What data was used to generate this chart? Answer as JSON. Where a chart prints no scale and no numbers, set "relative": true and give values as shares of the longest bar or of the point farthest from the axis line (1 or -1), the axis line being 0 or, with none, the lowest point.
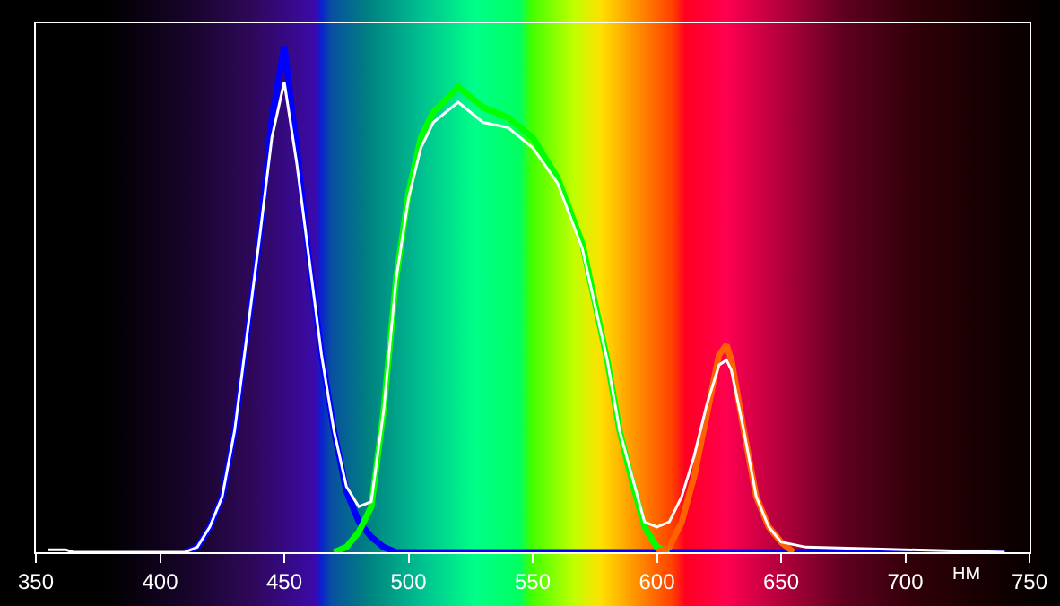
{
  "chart_data": {
    "type": "line",
    "relative": true,
    "xlabel": "НМ",
    "xlim": [
      350,
      750
    ],
    "xticks": [
      350,
      400,
      450,
      500,
      550,
      600,
      650,
      700,
      750
    ],
    "grid": false,
    "marker": "none",
    "line_style": "solid",
    "series": [
      {
        "color": "#0000ff",
        "x": [
          410,
          415,
          420,
          425,
          430,
          435,
          440,
          445,
          450,
          455,
          460,
          465,
          470,
          475,
          480,
          485,
          490,
          495,
          550,
          600,
          650,
          700,
          740
        ],
        "values": [
          0,
          0.01,
          0.05,
          0.11,
          0.24,
          0.43,
          0.62,
          0.86,
          1.0,
          0.8,
          0.58,
          0.39,
          0.24,
          0.12,
          0.06,
          0.03,
          0.01,
          0,
          0,
          0,
          0,
          0,
          0
        ]
      },
      {
        "color": "#00ff00",
        "x": [
          470,
          475,
          480,
          485,
          490,
          495,
          500,
          505,
          510,
          520,
          530,
          540,
          550,
          560,
          570,
          580,
          585,
          590,
          595,
          600,
          605
        ],
        "values": [
          0,
          0.01,
          0.04,
          0.09,
          0.28,
          0.54,
          0.71,
          0.82,
          0.87,
          0.92,
          0.88,
          0.86,
          0.82,
          0.74,
          0.61,
          0.38,
          0.24,
          0.14,
          0.05,
          0.01,
          0
        ]
      },
      {
        "color": "#ff6000",
        "x": [
          600,
          605,
          610,
          615,
          620,
          625,
          628,
          630,
          635,
          640,
          645,
          650,
          655
        ],
        "values": [
          0,
          0.01,
          0.06,
          0.15,
          0.27,
          0.39,
          0.41,
          0.38,
          0.24,
          0.11,
          0.05,
          0.02,
          0
        ]
      },
      {
        "color": "#ffffff",
        "x": [
          355,
          362,
          365,
          410,
          415,
          420,
          425,
          430,
          435,
          440,
          445,
          450,
          455,
          460,
          465,
          470,
          475,
          480,
          485,
          490,
          495,
          500,
          505,
          510,
          520,
          530,
          540,
          550,
          560,
          570,
          580,
          585,
          590,
          595,
          600,
          605,
          610,
          615,
          620,
          625,
          628,
          630,
          635,
          640,
          645,
          650,
          660,
          700,
          740
        ],
        "values": [
          0.005,
          0.005,
          0,
          0,
          0.01,
          0.05,
          0.11,
          0.24,
          0.43,
          0.62,
          0.82,
          0.93,
          0.77,
          0.58,
          0.39,
          0.24,
          0.13,
          0.09,
          0.1,
          0.28,
          0.54,
          0.7,
          0.8,
          0.85,
          0.89,
          0.85,
          0.84,
          0.8,
          0.73,
          0.6,
          0.38,
          0.24,
          0.15,
          0.06,
          0.05,
          0.06,
          0.11,
          0.19,
          0.29,
          0.37,
          0.38,
          0.36,
          0.24,
          0.11,
          0.05,
          0.02,
          0.01,
          0.005,
          0
        ]
      }
    ]
  }
}
